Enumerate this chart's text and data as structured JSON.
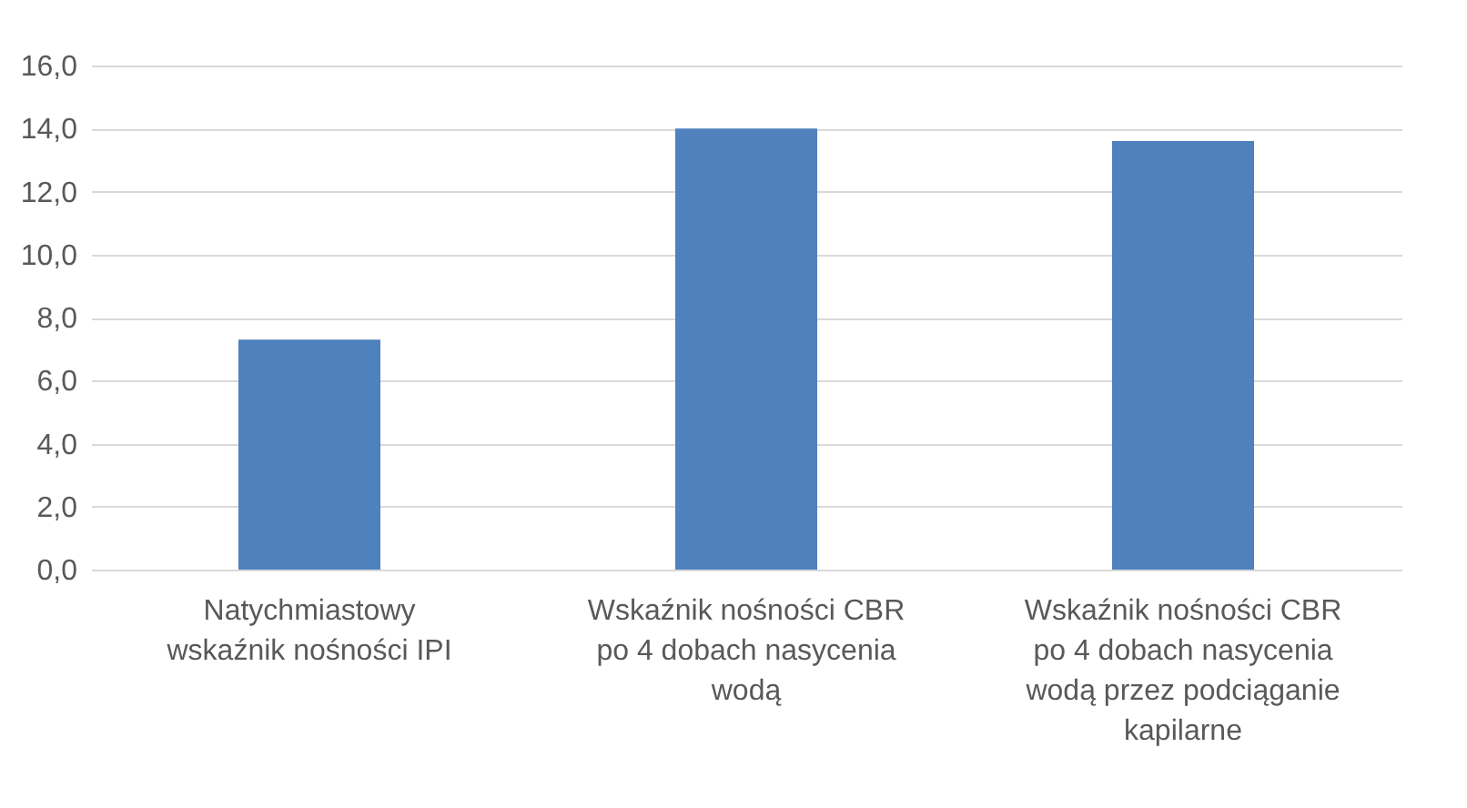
{
  "chart_data": {
    "type": "bar",
    "categories": [
      "Natychmiastowy wskaźnik nośności IPI",
      "Wskaźnik nośności CBR po 4 dobach nasycenia wodą",
      "Wskaźnik nośności CBR po 4 dobach nasycenia wodą przez podciąganie kapilarne"
    ],
    "values": [
      7.3,
      14.0,
      13.6
    ],
    "color": "#4f81bd",
    "ylim": [
      0,
      16
    ],
    "yticks": [
      {
        "value": 0,
        "label": "0,0"
      },
      {
        "value": 2,
        "label": "2,0"
      },
      {
        "value": 4,
        "label": "4,0"
      },
      {
        "value": 6,
        "label": "6,0"
      },
      {
        "value": 8,
        "label": "8,0"
      },
      {
        "value": 10,
        "label": "10,0"
      },
      {
        "value": 12,
        "label": "12,0"
      },
      {
        "value": 14,
        "label": "14,0"
      },
      {
        "value": 16,
        "label": "16,0"
      }
    ],
    "grid": "y"
  }
}
